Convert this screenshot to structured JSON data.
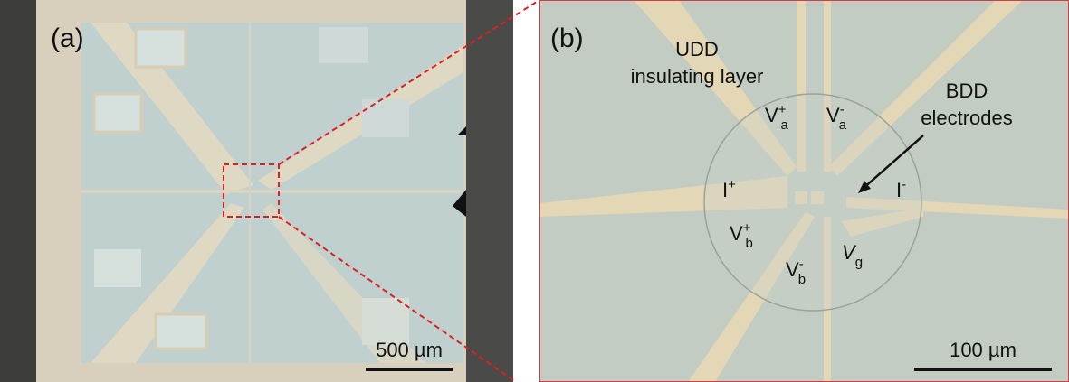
{
  "panels": [
    {
      "label": "(a)",
      "scale_bar": "500 µm"
    },
    {
      "label": "(b)",
      "scale_bar": "100 µm",
      "annotations": [
        {
          "lines": [
            "UDD",
            "insulating layer"
          ]
        },
        {
          "lines": [
            "BDD",
            "electrodes"
          ]
        }
      ],
      "electrodes": [
        {
          "base": "V",
          "sup": "+",
          "sub": "a"
        },
        {
          "base": "V",
          "sup": "-",
          "sub": "a"
        },
        {
          "base": "I",
          "sup": "+"
        },
        {
          "base": "I",
          "sup": "-"
        },
        {
          "base": "V",
          "sup": "+",
          "sub": "b"
        },
        {
          "base": "V",
          "sup": "-",
          "sub": "b"
        },
        {
          "base": "V",
          "sub": "g"
        }
      ]
    }
  ]
}
